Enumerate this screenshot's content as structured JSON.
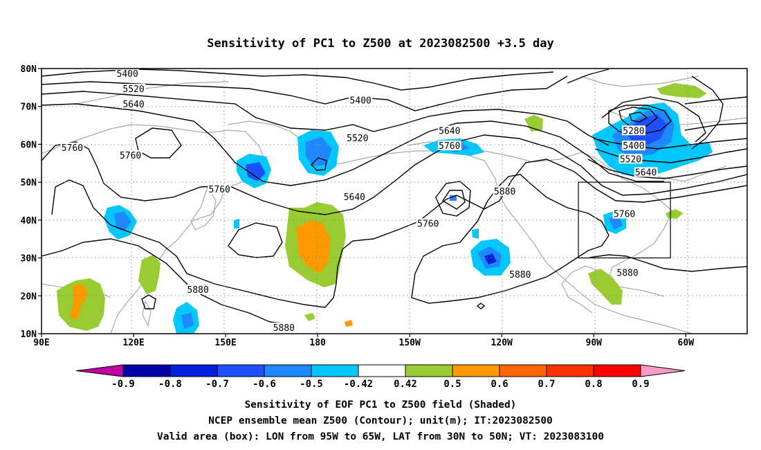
{
  "title": "Sensitivity of PC1 to Z500 at 2023082500 +3.5 day",
  "lat_ticks": [
    "80N",
    "70N",
    "60N",
    "50N",
    "40N",
    "30N",
    "20N",
    "10N"
  ],
  "lon_ticks": [
    "90E",
    "120E",
    "150E",
    "180",
    "150W",
    "120W",
    "90W",
    "60W"
  ],
  "contour_labels": [
    {
      "value": "5400",
      "lon": 118,
      "lat": 78.5
    },
    {
      "value": "5520",
      "lon": 120,
      "lat": 74.5
    },
    {
      "value": "5640",
      "lon": 120,
      "lat": 70.5
    },
    {
      "value": "5400",
      "lon": 194,
      "lat": 71.5
    },
    {
      "value": "5520",
      "lon": 193,
      "lat": 61.5
    },
    {
      "value": "5640",
      "lon": 223,
      "lat": 63.5
    },
    {
      "value": "5760",
      "lon": 223,
      "lat": 59.5
    },
    {
      "value": "5760",
      "lon": 100,
      "lat": 59
    },
    {
      "value": "5760",
      "lon": 119,
      "lat": 57
    },
    {
      "value": "5760",
      "lon": 148,
      "lat": 48
    },
    {
      "value": "5640",
      "lon": 192,
      "lat": 46
    },
    {
      "value": "5760",
      "lon": 216,
      "lat": 39
    },
    {
      "value": "5880",
      "lon": 241,
      "lat": 47.5
    },
    {
      "value": "5880",
      "lon": 246,
      "lat": 25.5
    },
    {
      "value": "5880",
      "lon": 141,
      "lat": 21.5
    },
    {
      "value": "5880",
      "lon": 169,
      "lat": 11.5
    },
    {
      "value": "5880",
      "lon": 281,
      "lat": 26
    },
    {
      "value": "5280",
      "lon": 283,
      "lat": 63.5
    },
    {
      "value": "5400",
      "lon": 283,
      "lat": 59.5
    },
    {
      "value": "5520",
      "lon": 282,
      "lat": 56
    },
    {
      "value": "5640",
      "lon": 287,
      "lat": 52.5
    },
    {
      "value": "5760",
      "lon": 280,
      "lat": 41.5
    }
  ],
  "valid_box": {
    "lon_min": -95,
    "lon_max": -65,
    "lat_min": 30,
    "lat_max": 50
  },
  "colorbar": {
    "colors": [
      "#c000a0",
      "#0000aa",
      "#0022dd",
      "#1e50ff",
      "#1e88ff",
      "#00c8ff",
      "#ffffff",
      "#99cc33",
      "#ff9900",
      "#ff6600",
      "#ff3300",
      "#ff0000",
      "#ff99cc"
    ],
    "labels": [
      "-0.9",
      "-0.8",
      "-0.7",
      "-0.6",
      "-0.5",
      "-0.42",
      "0.42",
      "0.5",
      "0.6",
      "0.7",
      "0.8",
      "0.9"
    ]
  },
  "caption": {
    "line1": "Sensitivity of EOF PC1 to Z500 field (Shaded)",
    "line2": "NCEP ensemble mean Z500 (Contour); unit(m); IT:2023082500",
    "line3": "Valid area (box): LON from 95W to 65W, LAT from 30N to 50N; VT: 2023083100"
  }
}
